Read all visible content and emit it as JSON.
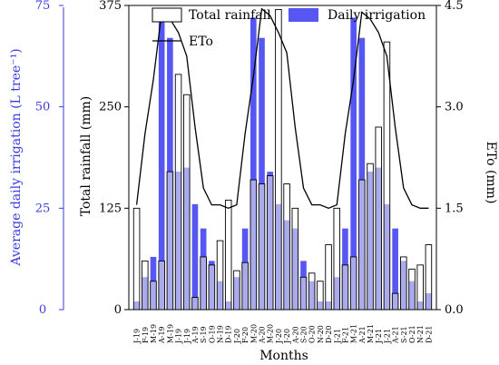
{
  "chart_data": {
    "type": "bar",
    "xlabel": "Months",
    "ylabel_left_outer": "Average daily irrigation (L tree⁻¹)",
    "ylabel_left": "Total rainfall (mm)",
    "ylabel_right": "ETo (mm)",
    "categories": [
      "J-19",
      "F-19",
      "M-19",
      "A-19",
      "M-19",
      "J-19",
      "J-19",
      "A-19",
      "S-19",
      "O-19",
      "N-19",
      "D-19",
      "J-20",
      "F-20",
      "M-20",
      "A-20",
      "M-20",
      "J-20",
      "J-20",
      "A-20",
      "S-20",
      "O-20",
      "N-20",
      "D-20",
      "J-21",
      "F-21",
      "M-21",
      "A-21",
      "M-21",
      "J-21",
      "J-21",
      "A-21",
      "S-21",
      "O-21",
      "N-21",
      "D-21"
    ],
    "yticks_rainfall": [
      "0",
      "125",
      "250",
      "375"
    ],
    "yticks_irrigation": [
      "0",
      "25",
      "50",
      "75"
    ],
    "yticks_eto": [
      "0.0",
      "1.5",
      "3.0",
      "4.5"
    ],
    "ylim_rainfall": [
      0,
      375
    ],
    "ylim_irrigation": [
      0,
      75
    ],
    "ylim_eto": [
      0,
      4.5
    ],
    "series": [
      {
        "name": "Total rainfall",
        "axis": "rainfall",
        "values": [
          125,
          60,
          35,
          60,
          170,
          290,
          265,
          15,
          65,
          55,
          85,
          135,
          48,
          58,
          160,
          155,
          165,
          370,
          155,
          125,
          40,
          45,
          35,
          80,
          125,
          55,
          65,
          160,
          180,
          225,
          330,
          20,
          65,
          50,
          55,
          80
        ]
      },
      {
        "name": "Daily irrigation",
        "axis": "irrigation",
        "values": [
          2,
          8,
          13,
          72,
          67,
          34,
          35,
          26,
          20,
          12,
          7,
          2,
          8,
          20,
          72,
          67,
          34,
          26,
          22,
          20,
          12,
          7,
          2,
          2,
          8,
          20,
          72,
          67,
          34,
          35,
          26,
          20,
          12,
          7,
          2,
          4
        ]
      },
      {
        "name": "ETo",
        "axis": "eto",
        "values": [
          1.55,
          2.6,
          3.4,
          4.4,
          4.3,
          4.1,
          3.75,
          2.7,
          1.8,
          1.55,
          1.55,
          1.5,
          1.55,
          2.6,
          3.45,
          4.45,
          4.35,
          4.1,
          3.8,
          2.7,
          1.8,
          1.55,
          1.55,
          1.5,
          1.55,
          2.6,
          3.4,
          4.4,
          4.3,
          4.1,
          3.75,
          2.7,
          1.8,
          1.55,
          1.5,
          1.5
        ]
      }
    ],
    "legend": [
      "Total rainfall",
      "Daily irrigation",
      "ETo"
    ],
    "legend_position": "top",
    "colors": {
      "rainfall_fill": "#ffffff",
      "rainfall_overlap": "#b8b8ec",
      "irrigation": "#5656f2",
      "eto": "#000000",
      "outer_axis": "#3a3ae0"
    }
  }
}
